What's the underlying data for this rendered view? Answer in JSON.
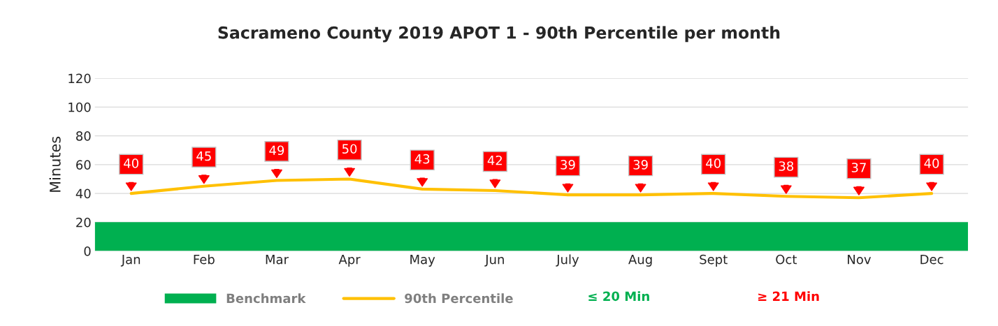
{
  "chart_data": {
    "type": "line",
    "title": "Sacrameno County 2019 APOT 1 - 90th Percentile per month",
    "ylabel": "Minutes",
    "categories": [
      "Jan",
      "Feb",
      "Mar",
      "Apr",
      "May",
      "Jun",
      "July",
      "Aug",
      "Sept",
      "Oct",
      "Nov",
      "Dec"
    ],
    "series": [
      {
        "name": "90th Percentile",
        "color": "#ffc000",
        "values": [
          40,
          45,
          49,
          50,
          43,
          42,
          39,
          39,
          40,
          38,
          37,
          40
        ]
      }
    ],
    "bands": [
      {
        "axis": "y",
        "from": 0,
        "to": 20,
        "label": "Benchmark",
        "color": "#00b050"
      }
    ],
    "annotations": [
      "≤ 20 Min",
      "≥ 21 Min"
    ],
    "ylim": [
      0,
      120
    ],
    "yticks": [
      0,
      20,
      40,
      60,
      80,
      100,
      120
    ],
    "grid": "y",
    "legend": "bottom",
    "data_labels": true,
    "marker": "none",
    "line_style": "solid"
  }
}
